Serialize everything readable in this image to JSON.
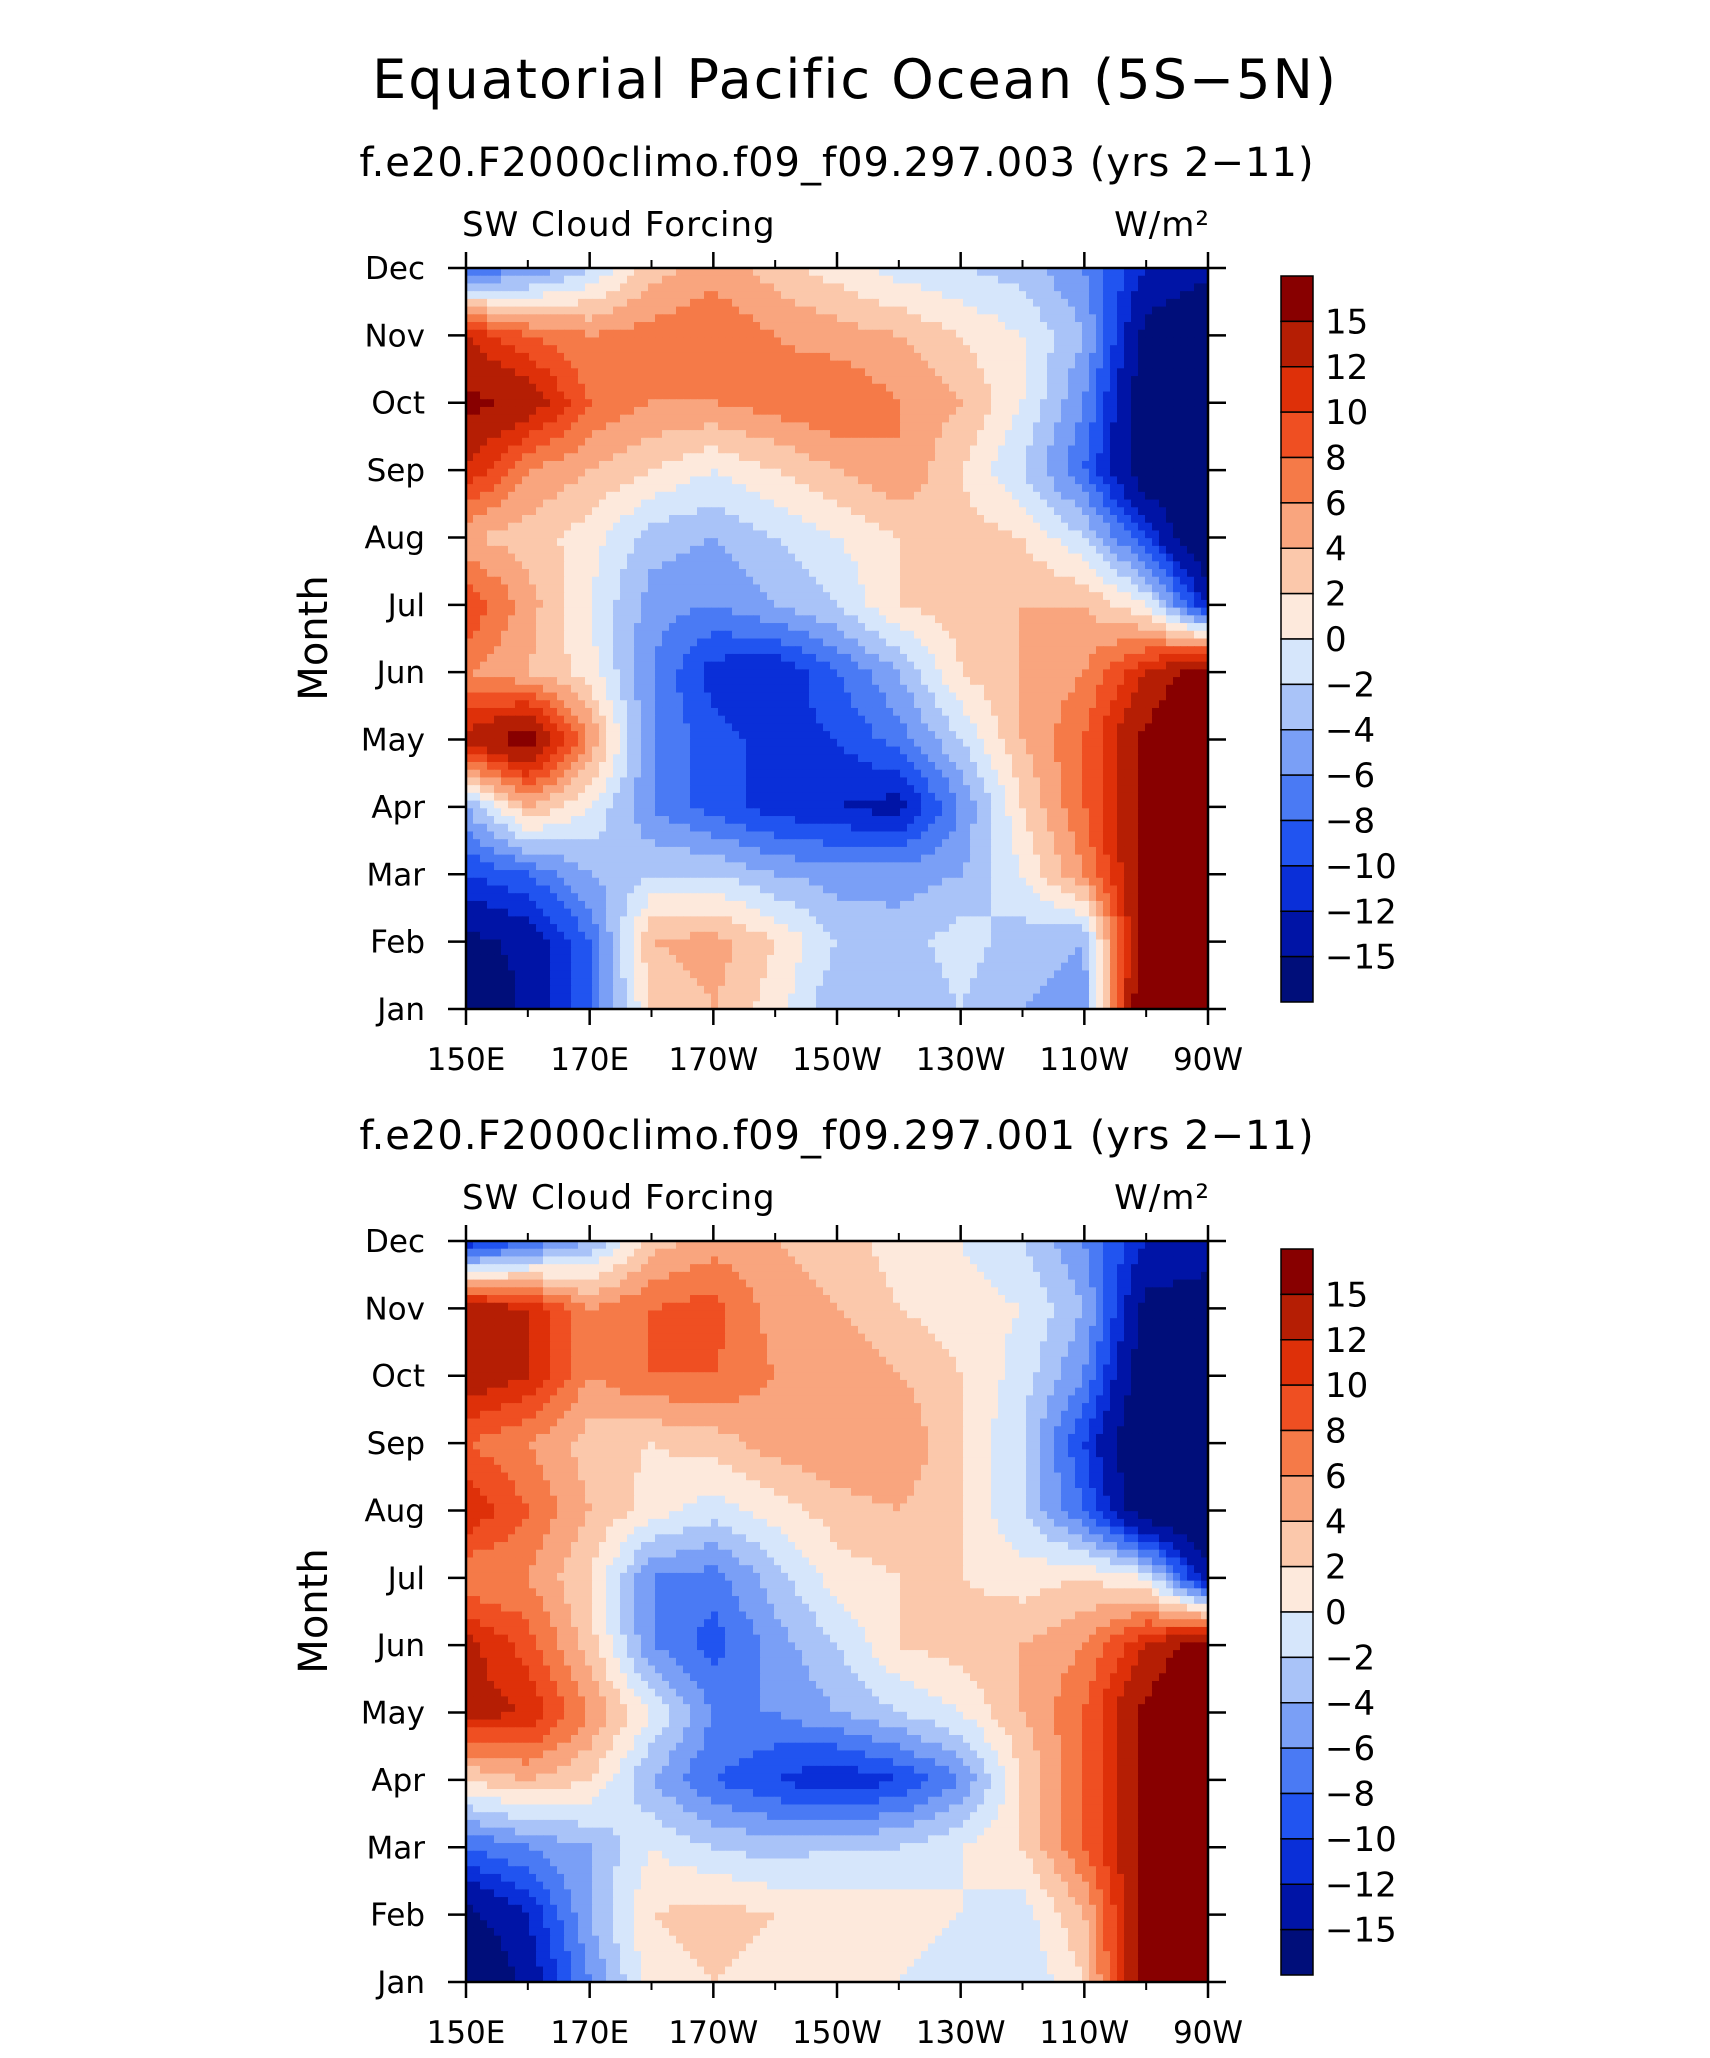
{
  "figure": {
    "title": "Equatorial Pacific Ocean (5S−5N)"
  },
  "chart_data": [
    {
      "type": "heatmap",
      "title": "f.e20.F2000climo.f09_f09.297.003 (yrs 2−11)",
      "left_label": "SW Cloud Forcing",
      "right_label": "W/m²",
      "ylabel": "Month",
      "x": [
        "150E",
        "170E",
        "170W",
        "150W",
        "130W",
        "110W",
        "90W"
      ],
      "x_numeric": [
        150,
        170,
        190,
        210,
        230,
        250,
        270
      ],
      "y": [
        "Jan",
        "Feb",
        "Mar",
        "Apr",
        "May",
        "Jun",
        "Jul",
        "Aug",
        "Sep",
        "Oct",
        "Nov",
        "Dec"
      ],
      "colorbar_levels": [
        -15,
        -12,
        -10,
        -8,
        -6,
        -4,
        -2,
        0,
        2,
        4,
        6,
        8,
        10,
        12,
        15
      ],
      "colorbar_labels": [
        "15",
        "12",
        "10",
        "8",
        "6",
        "4",
        "2",
        "0",
        "−2",
        "−4",
        "−6",
        "−8",
        "−10",
        "−12",
        "−15"
      ],
      "z": [
        [
          -20,
          -14,
          -8,
          2,
          4,
          1,
          -4,
          -4,
          -2,
          -4,
          -5,
          20,
          22
        ],
        [
          -16,
          -14,
          -8,
          4,
          5,
          2,
          -2,
          -3,
          -1,
          -3,
          -4,
          18,
          22
        ],
        [
          -10,
          -8,
          -4,
          -2,
          -2,
          -4,
          -5,
          -5,
          -4,
          0,
          6,
          16,
          20
        ],
        [
          -4,
          4,
          0,
          -6,
          -9,
          -11,
          -12,
          -13,
          -6,
          2,
          8,
          16,
          20
        ],
        [
          13,
          17,
          6,
          -6,
          -9,
          -11,
          -10,
          -7,
          -2,
          4,
          8,
          16,
          20
        ],
        [
          6,
          4,
          1,
          -6,
          -11,
          -12,
          -8,
          -4,
          2,
          4,
          6,
          12,
          18
        ],
        [
          10,
          5,
          0,
          -5,
          -6,
          -4,
          -2,
          2,
          3,
          4,
          4,
          0,
          -12
        ],
        [
          4,
          3,
          1,
          -3,
          -4,
          -2,
          0,
          2,
          3,
          2,
          -2,
          -10,
          -20
        ],
        [
          12,
          6,
          4,
          2,
          0,
          2,
          4,
          6,
          2,
          -2,
          -8,
          -18,
          -20
        ],
        [
          16,
          14,
          8,
          6,
          6,
          7,
          8,
          6,
          4,
          0,
          -6,
          -18,
          -20
        ],
        [
          12,
          8,
          6,
          7,
          8,
          6,
          5,
          4,
          2,
          0,
          -4,
          -16,
          -20
        ],
        [
          -8,
          -6,
          -2,
          3,
          5,
          3,
          1,
          -1,
          -2,
          -3,
          -6,
          -12,
          -14
        ]
      ]
    },
    {
      "type": "heatmap",
      "title": "f.e20.F2000climo.f09_f09.297.001 (yrs 2−11)",
      "left_label": "SW Cloud Forcing",
      "right_label": "W/m²",
      "ylabel": "Month",
      "x": [
        "150E",
        "170E",
        "170W",
        "150W",
        "130W",
        "110W",
        "90W"
      ],
      "x_numeric": [
        150,
        170,
        190,
        210,
        230,
        250,
        270
      ],
      "y": [
        "Jan",
        "Feb",
        "Mar",
        "Apr",
        "May",
        "Jun",
        "Jul",
        "Aug",
        "Sep",
        "Oct",
        "Nov",
        "Dec"
      ],
      "colorbar_levels": [
        -15,
        -12,
        -10,
        -8,
        -6,
        -4,
        -2,
        0,
        2,
        4,
        6,
        8,
        10,
        12,
        15
      ],
      "colorbar_labels": [
        "15",
        "12",
        "10",
        "8",
        "6",
        "4",
        "2",
        "0",
        "−2",
        "−4",
        "−6",
        "−8",
        "−10",
        "−12",
        "−15"
      ],
      "z": [
        [
          -20,
          -14,
          -6,
          1,
          2,
          1,
          0,
          0,
          -1,
          -2,
          2,
          18,
          22
        ],
        [
          -16,
          -12,
          -4,
          2,
          3,
          2,
          1,
          1,
          0,
          -1,
          4,
          16,
          22
        ],
        [
          -8,
          -6,
          -4,
          0,
          -2,
          -3,
          -2,
          -2,
          0,
          2,
          8,
          16,
          20
        ],
        [
          2,
          4,
          2,
          -4,
          -8,
          -10,
          -12,
          -10,
          -6,
          2,
          8,
          16,
          20
        ],
        [
          13,
          12,
          6,
          0,
          -6,
          -6,
          -4,
          -2,
          0,
          4,
          8,
          16,
          20
        ],
        [
          13,
          9,
          3,
          -6,
          -9,
          -5,
          -2,
          2,
          3,
          4,
          6,
          12,
          18
        ],
        [
          6,
          6,
          2,
          -6,
          -7,
          -3,
          1,
          2,
          2,
          1,
          2,
          0,
          -14
        ],
        [
          12,
          8,
          4,
          1,
          -1,
          1,
          3,
          4,
          2,
          -2,
          -8,
          -18,
          -20
        ],
        [
          8,
          6,
          3,
          2,
          3,
          5,
          6,
          6,
          2,
          -2,
          -10,
          -20,
          -20
        ],
        [
          14,
          12,
          6,
          8,
          8,
          6,
          6,
          4,
          2,
          -1,
          -6,
          -18,
          -20
        ],
        [
          14,
          12,
          6,
          8,
          9,
          5,
          4,
          2,
          1,
          0,
          -4,
          -16,
          -18
        ],
        [
          -12,
          -8,
          -4,
          3,
          5,
          4,
          3,
          1,
          0,
          -2,
          -6,
          -12,
          -12
        ]
      ]
    }
  ],
  "colors": {
    "palette": [
      "#000e7a",
      "#0014a6",
      "#0a2fd8",
      "#2154f0",
      "#4a7af4",
      "#7a9ff6",
      "#a9c3f8",
      "#d6e6fb",
      "#fde9dc",
      "#fbc8ab",
      "#f9a57e",
      "#f57a48",
      "#ef4f22",
      "#de3009",
      "#b51e04",
      "#880000"
    ]
  }
}
